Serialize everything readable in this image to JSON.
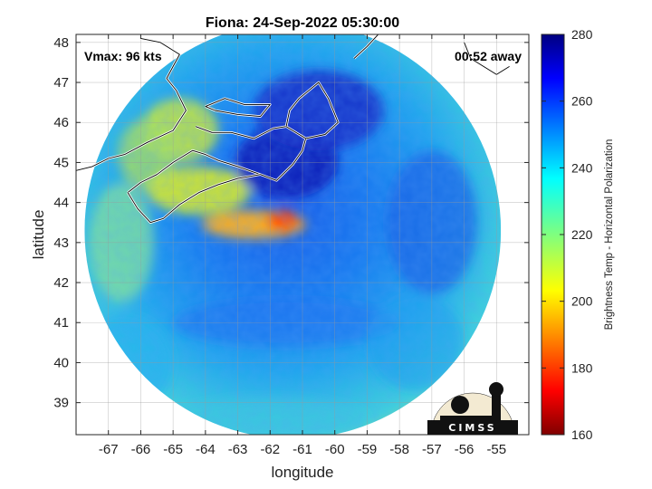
{
  "chart_data": {
    "type": "heatmap",
    "title": "Fiona: 24-Sep-2022 05:30:00",
    "xlabel": "longitude",
    "ylabel": "latitude",
    "xlim": [
      -68,
      -54
    ],
    "ylim": [
      38.2,
      48.2
    ],
    "xticks": [
      -67,
      -66,
      -65,
      -64,
      -63,
      -62,
      -61,
      -60,
      -59,
      -58,
      -57,
      -56,
      -55
    ],
    "yticks": [
      39,
      40,
      41,
      42,
      43,
      44,
      45,
      46,
      47,
      48
    ],
    "grid": true,
    "colorbar": {
      "label": "Brightness Temp - Horizontal Polarization",
      "min": 160,
      "max": 280,
      "ticks": [
        160,
        180,
        200,
        220,
        240,
        260,
        280
      ],
      "colormap": "jet"
    },
    "storm_center": {
      "lon": -61.5,
      "lat": 43.6
    },
    "swath": {
      "center_lon": -61.3,
      "center_lat": 43.3,
      "radius_deg_lat": 5.2
    },
    "annotations": {
      "vmax": "Vmax: 96 kts",
      "time_offset": "00:52 away"
    },
    "logo": "CIMSS"
  }
}
